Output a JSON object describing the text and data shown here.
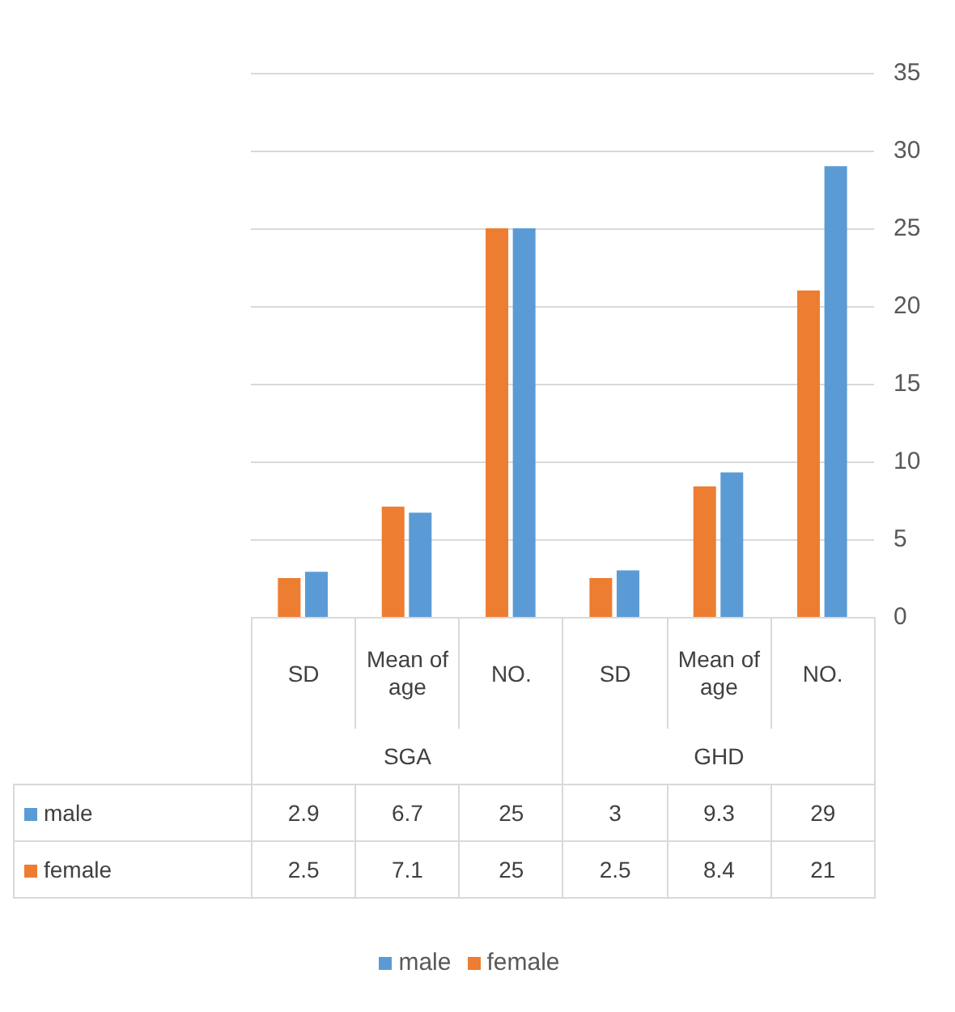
{
  "chart_data": {
    "type": "bar",
    "categories": [
      "SD",
      "Mean of age",
      "NO.",
      "SD",
      "Mean of age",
      "NO."
    ],
    "annotations": [
      "SGA",
      "GHD"
    ],
    "series": [
      {
        "name": "male",
        "color": "#5b9bd5",
        "values": [
          2.9,
          6.7,
          25,
          3,
          9.3,
          29
        ]
      },
      {
        "name": "female",
        "color": "#ed7d31",
        "values": [
          2.5,
          7.1,
          25,
          2.5,
          8.4,
          21
        ]
      }
    ],
    "ylim": [
      0,
      35
    ],
    "yticks": [
      0,
      5,
      10,
      15,
      20,
      25,
      30,
      35
    ],
    "grid": "y",
    "legend": "bottom",
    "data_labels": true
  }
}
